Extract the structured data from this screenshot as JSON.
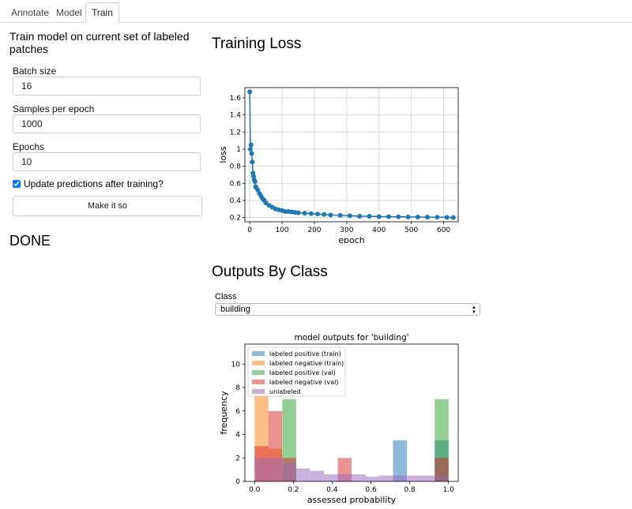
{
  "tabs": [
    {
      "label": "Annotate",
      "active": false
    },
    {
      "label": "Model",
      "active": false
    },
    {
      "label": "Train",
      "active": true
    }
  ],
  "train_panel": {
    "heading": "Train model on current set of labeled patches",
    "batch_size_label": "Batch size",
    "batch_size_value": "16",
    "samples_label": "Samples per epoch",
    "samples_value": "1000",
    "epochs_label": "Epochs",
    "epochs_value": "10",
    "update_checkbox_label": "Update predictions after training?",
    "update_checked": true,
    "submit_label": "Make it so",
    "status": "DONE"
  },
  "loss_section": {
    "heading": "Training Loss"
  },
  "outputs_section": {
    "heading": "Outputs By Class",
    "class_label": "Class",
    "class_selected": "building"
  },
  "chart_data": [
    {
      "type": "line",
      "xlabel": "epoch",
      "ylabel": "loss",
      "xlim": [
        -15,
        645
      ],
      "ylim": [
        0.15,
        1.72
      ],
      "xticks": [
        0,
        100,
        200,
        300,
        400,
        500,
        600
      ],
      "yticks": [
        0.2,
        0.4,
        0.6,
        0.8,
        1.0,
        1.2,
        1.4,
        1.6
      ],
      "grid": true,
      "color": "#1f77b4",
      "series": [
        {
          "x": [
            0,
            2,
            4,
            6,
            8,
            10,
            12,
            14,
            16,
            18,
            20,
            25,
            30,
            35,
            40,
            45,
            50,
            60,
            70,
            80,
            90,
            100,
            110,
            120,
            130,
            140,
            150,
            170,
            190,
            210,
            230,
            250,
            280,
            310,
            340,
            370,
            400,
            430,
            460,
            490,
            520,
            550,
            580,
            610,
            630
          ],
          "y": [
            1.67,
            1.0,
            1.05,
            0.95,
            0.85,
            0.72,
            0.68,
            0.64,
            0.62,
            0.56,
            0.55,
            0.52,
            0.48,
            0.45,
            0.42,
            0.4,
            0.37,
            0.34,
            0.32,
            0.3,
            0.29,
            0.28,
            0.27,
            0.27,
            0.265,
            0.26,
            0.255,
            0.25,
            0.245,
            0.24,
            0.235,
            0.23,
            0.225,
            0.22,
            0.215,
            0.215,
            0.21,
            0.21,
            0.208,
            0.206,
            0.205,
            0.204,
            0.203,
            0.202,
            0.2
          ]
        }
      ]
    },
    {
      "type": "bar",
      "title": "model outputs for 'building'",
      "xlabel": "assessed probability",
      "ylabel": "frequency",
      "xlim": [
        -0.05,
        1.05
      ],
      "ylim": [
        0,
        11.7
      ],
      "xticks": [
        0.0,
        0.2,
        0.4,
        0.6,
        0.8,
        1.0
      ],
      "yticks": [
        0,
        2,
        4,
        6,
        8,
        10
      ],
      "bin_width": 0.0714,
      "legend_position": "upper-left",
      "series": [
        {
          "name": "labeled positive (train)",
          "color": "#1f77b4",
          "bins": [
            0.714,
            0.929
          ],
          "values": [
            3.5,
            3.5
          ]
        },
        {
          "name": "labeled negative (train)",
          "color": "#ff7f0e",
          "bins": [
            0.0,
            0.071
          ],
          "values": [
            8.0,
            2.8
          ]
        },
        {
          "name": "labeled positive (val)",
          "color": "#2ca02c",
          "bins": [
            0.143,
            0.929
          ],
          "values": [
            7.0,
            7.0
          ]
        },
        {
          "name": "labeled negative (val)",
          "color": "#d62728",
          "bins": [
            0.0,
            0.071,
            0.143,
            0.429,
            0.929
          ],
          "values": [
            3.0,
            6.0,
            2.0,
            2.0,
            2.0
          ]
        },
        {
          "name": "unlabeled",
          "color": "#9467bd",
          "bins": [
            0.0,
            0.071,
            0.143,
            0.214,
            0.286,
            0.357,
            0.429,
            0.5,
            0.571,
            0.643,
            0.714,
            0.786,
            0.857,
            0.929
          ],
          "values": [
            2.0,
            2.0,
            1.6,
            1.1,
            0.9,
            0.6,
            0.6,
            0.6,
            0.4,
            0.5,
            0.5,
            0.5,
            0.5,
            0.5
          ]
        }
      ]
    }
  ]
}
